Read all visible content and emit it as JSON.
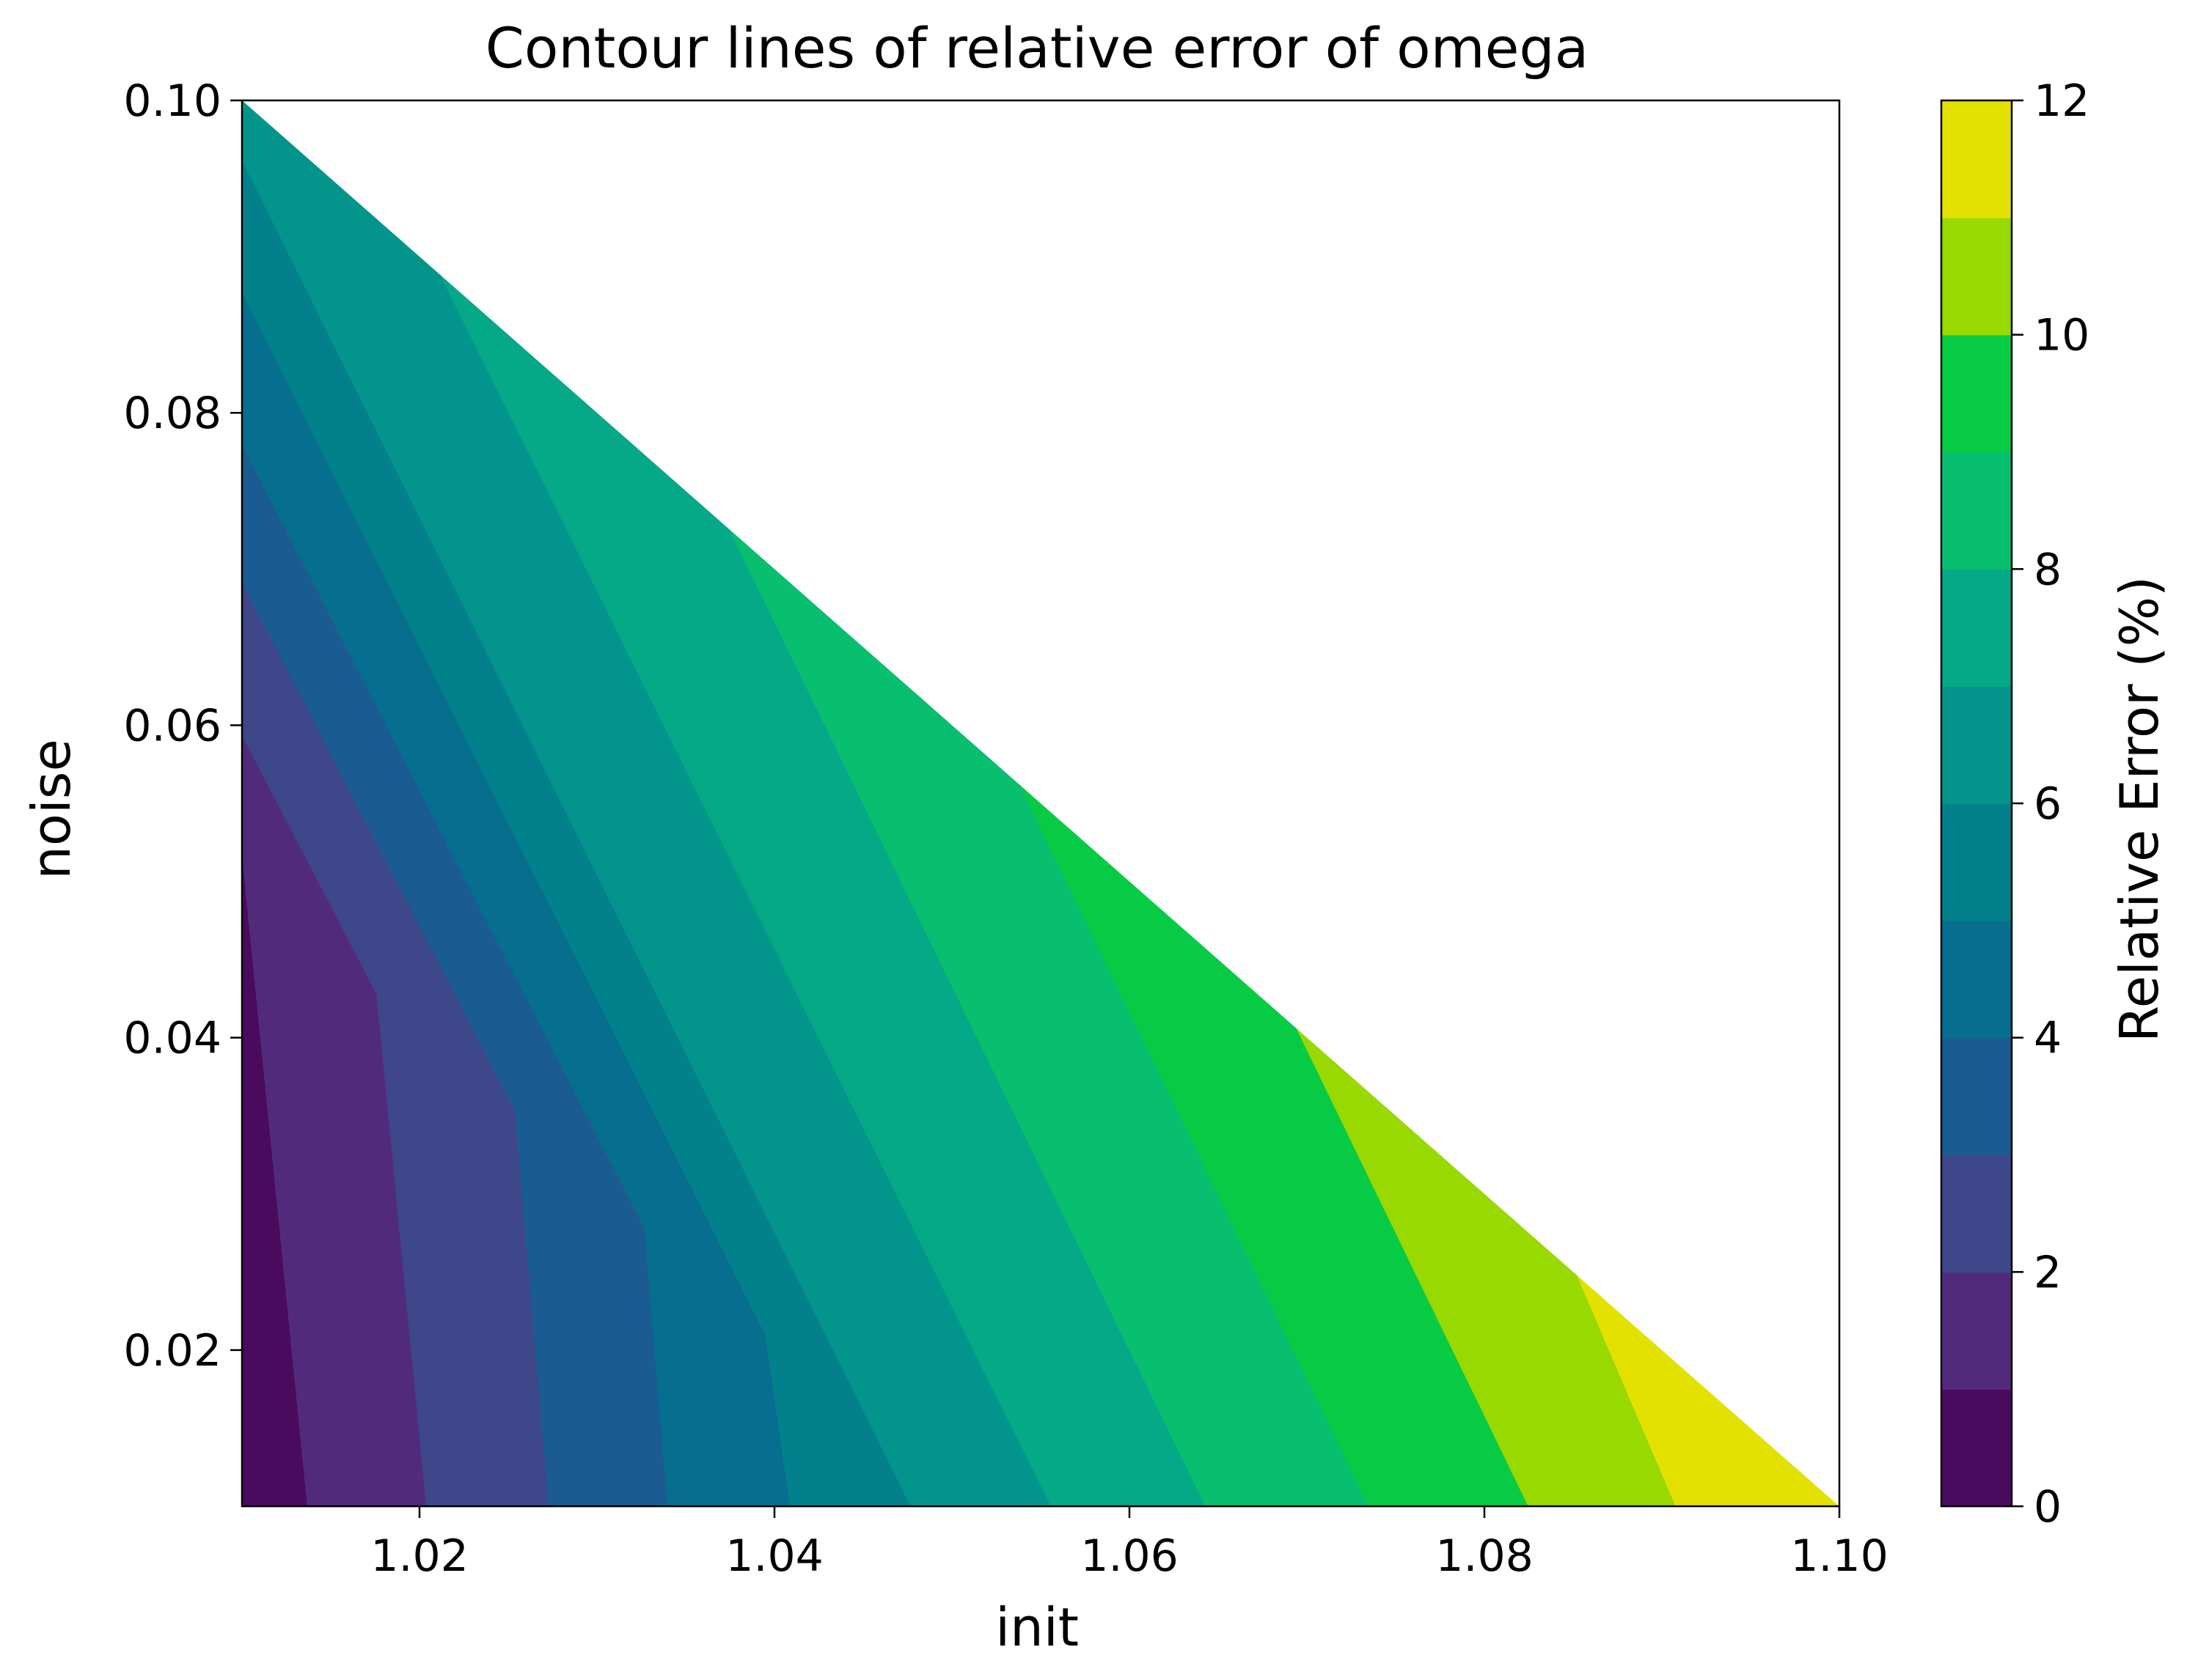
{
  "chart_data": {
    "type": "contour",
    "title": "Contour lines of relative error of omega",
    "xlabel": "init",
    "ylabel": "noise",
    "xlim": [
      1.01,
      1.1
    ],
    "ylim": [
      0.01,
      0.1
    ],
    "xticks": [
      {
        "value": 1.02,
        "label": "1.02"
      },
      {
        "value": 1.04,
        "label": "1.04"
      },
      {
        "value": 1.06,
        "label": "1.06"
      },
      {
        "value": 1.08,
        "label": "1.08"
      },
      {
        "value": 1.1,
        "label": "1.10"
      }
    ],
    "yticks": [
      {
        "value": 0.02,
        "label": "0.02"
      },
      {
        "value": 0.04,
        "label": "0.04"
      },
      {
        "value": 0.06,
        "label": "0.06"
      },
      {
        "value": 0.08,
        "label": "0.08"
      },
      {
        "value": 0.1,
        "label": "0.10"
      }
    ],
    "valid_region": "noise <= 0.10 - (init - 1.01)",
    "colorbar": {
      "label": "Relative Error (%)",
      "range": [
        0,
        12
      ],
      "levels": [
        0,
        1,
        2,
        3,
        4,
        5,
        6,
        7,
        8,
        9,
        10,
        11,
        12
      ],
      "colors": [
        "#440154",
        "#482878",
        "#3e4989",
        "#31688e",
        "#26828e",
        "#1f9e89",
        "#35b779",
        "#6ece58",
        "#b5de2b",
        "#fde725",
        "#00c853",
        "#8fdc00"
      ],
      "ticks": [
        {
          "value": 0,
          "label": "0"
        },
        {
          "value": 2,
          "label": "2"
        },
        {
          "value": 4,
          "label": "4"
        },
        {
          "value": 6,
          "label": "6"
        },
        {
          "value": 8,
          "label": "8"
        },
        {
          "value": 10,
          "label": "10"
        },
        {
          "value": 12,
          "label": "12"
        }
      ],
      "band_colors": [
        "#440154",
        "#482878",
        "#3e4989",
        "#31688e",
        "#26828e",
        "#1f9e89",
        "#35b779",
        "#6ece58",
        "#b5de2b",
        "#fde725",
        "#fde725",
        "#fde725"
      ],
      "band_colors_observed": [
        "#4a0a5e",
        "#522a7c",
        "#3d478a",
        "#1a5c91",
        "#066e8f",
        "#02818d",
        "#03958c",
        "#05a887",
        "#08be6f",
        "#08cb45",
        "#97d900",
        "#e3e100"
      ]
    },
    "contour_lines": [
      {
        "level": 1,
        "points": [
          [
            1.0101,
            0.0508
          ],
          [
            1.0137,
            0.01
          ]
        ]
      },
      {
        "level": 2,
        "points": [
          [
            1.0101,
            0.0592
          ],
          [
            1.0176,
            0.0428
          ],
          [
            1.0204,
            0.01
          ]
        ]
      },
      {
        "level": 3,
        "points": [
          [
            1.0101,
            0.069
          ],
          [
            1.0254,
            0.0353
          ],
          [
            1.0273,
            0.01
          ]
        ]
      },
      {
        "level": 4,
        "points": [
          [
            1.0101,
            0.0778
          ],
          [
            1.0327,
            0.0278
          ],
          [
            1.034,
            0.01
          ]
        ]
      },
      {
        "level": 5,
        "points": [
          [
            1.0101,
            0.0875
          ],
          [
            1.0395,
            0.021
          ],
          [
            1.0409,
            0.01
          ]
        ]
      },
      {
        "level": 6,
        "points": [
          [
            1.0101,
            0.096
          ],
          [
            1.0477,
            0.01
          ]
        ]
      },
      {
        "level": 7,
        "points": [
          [
            1.0212,
            0.0888
          ],
          [
            1.0556,
            0.01
          ]
        ]
      },
      {
        "level": 8,
        "points": [
          [
            1.0374,
            0.0727
          ],
          [
            1.0643,
            0.01
          ]
        ]
      },
      {
        "level": 9,
        "points": [
          [
            1.0537,
            0.0565
          ],
          [
            1.0735,
            0.01
          ]
        ]
      },
      {
        "level": 10,
        "points": [
          [
            1.0693,
            0.0409
          ],
          [
            1.0825,
            0.01
          ]
        ]
      },
      {
        "level": 11,
        "points": [
          [
            1.0852,
            0.0249
          ],
          [
            1.0908,
            0.01
          ]
        ]
      }
    ]
  }
}
